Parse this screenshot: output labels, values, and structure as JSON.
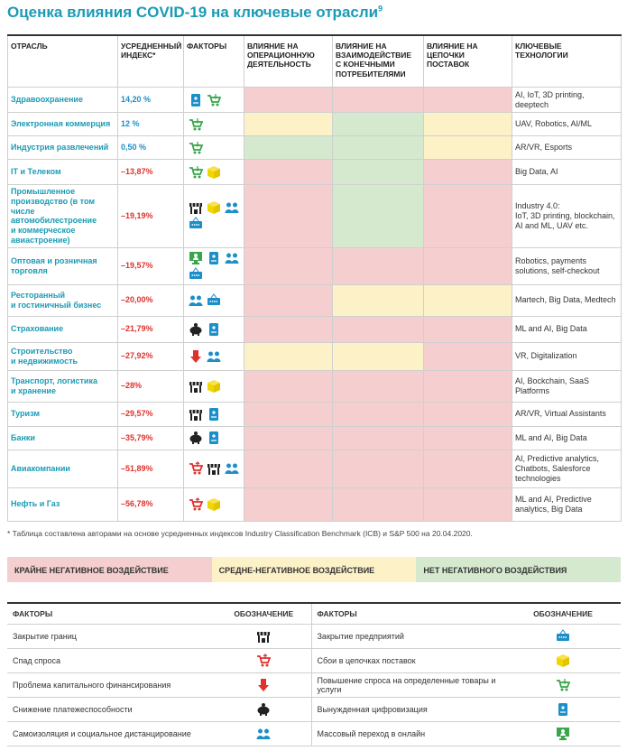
{
  "header": {
    "title": "Оценка влияния COVID-19 на ключевые отрасли",
    "footnote_mark": "9"
  },
  "table": {
    "columns": [
      "ОТРАСЛЬ",
      "УСРЕДНЕННЫЙ\nИНДЕКС*",
      "ФАКТОРЫ",
      "ВЛИЯНИЕ НА\nОПЕРАЦИОННУЮ\nДЕЯТЕЛЬНОСТЬ",
      "ВЛИЯНИЕ НА\nВЗАИМОДЕЙСТВИЕ\nС КОНЕЧНЫМИ\nПОТРЕБИТЕЛЯМИ",
      "ВЛИЯНИЕ НА\nЦЕПОЧКИ\nПОСТАВОК",
      "КЛЮЧЕВЫЕ\nТЕХНОЛОГИИ"
    ],
    "rows": [
      {
        "industry": "Здравоохранение",
        "index": "14,20 %",
        "impacts": [
          "#f5cfcf",
          "#f5cfcf",
          "#f5cfcf"
        ],
        "technologies": "AI, IoT, 3D printing, deeptech"
      },
      {
        "industry": "Электронная коммерция",
        "index": "12 %",
        "impacts": [
          "#fdf1c8",
          "#d5e9cf",
          "#fdf1c8"
        ],
        "technologies": "UAV, Robotics, AI/ML"
      },
      {
        "industry": "Индустрия развлечений",
        "index": "0,50 %",
        "impacts": [
          "#d5e9cf",
          "#d5e9cf",
          "#fdf1c8"
        ],
        "technologies": "AR/VR, Esports"
      },
      {
        "industry": "IT и Телеком",
        "index": "–13,87%",
        "impacts": [
          "#f5cfcf",
          "#d5e9cf",
          "#f5cfcf"
        ],
        "technologies": "Big Data, AI"
      },
      {
        "industry": "Промышленное\nпроизводство (в том числе\nавтомобилестроение\nи коммерческое\nавиастроение)",
        "index": "–19,19%",
        "impacts": [
          "#f5cfcf",
          "#d5e9cf",
          "#f5cfcf"
        ],
        "technologies": "Industry 4.0:\nIoT, 3D printing, blockchain,\nAI and ML, UAV etc."
      },
      {
        "industry": "Оптовая и розничная\nторговля",
        "index": "–19,57%",
        "impacts": [
          "#f5cfcf",
          "#f5cfcf",
          "#f5cfcf"
        ],
        "technologies": "Robotics, payments\nsolutions, self-checkout"
      },
      {
        "industry": "Ресторанный\nи гостиничный бизнес",
        "index": "–20,00%",
        "impacts": [
          "#f5cfcf",
          "#fdf1c8",
          "#fdf1c8"
        ],
        "technologies": "Martech, Big Data, Medtech"
      },
      {
        "industry": "Страхование",
        "index": "–21,79%",
        "impacts": [
          "#f5cfcf",
          "#f5cfcf",
          "#f5cfcf"
        ],
        "technologies": "ML and AI, Big Data"
      },
      {
        "industry": "Строительство\nи недвижимость",
        "index": "–27,92%",
        "impacts": [
          "#fdf1c8",
          "#fdf1c8",
          "#f5cfcf"
        ],
        "technologies": "VR, Digitalization"
      },
      {
        "industry": "Транспорт, логистика\nи хранение",
        "index": "–28%",
        "impacts": [
          "#f5cfcf",
          "#f5cfcf",
          "#f5cfcf"
        ],
        "technologies": "AI, Bockchain, SaaS\nPlatforms"
      },
      {
        "industry": "Туризм",
        "index": "–29,57%",
        "impacts": [
          "#f5cfcf",
          "#f5cfcf",
          "#f5cfcf"
        ],
        "technologies": "AR/VR, Virtual Assistants"
      },
      {
        "industry": "Банки",
        "index": "–35,79%",
        "impacts": [
          "#f5cfcf",
          "#f5cfcf",
          "#f5cfcf"
        ],
        "technologies": "ML and AI, Big Data"
      },
      {
        "industry": "Авиакомпании",
        "index": "–51,89%",
        "impacts": [
          "#f5cfcf",
          "#f5cfcf",
          "#f5cfcf"
        ],
        "technologies": "AI, Predictive analytics,\nChatbots, Salesforce\ntechnologies"
      },
      {
        "industry": "Нефть и Газ",
        "index": "–56,78%",
        "impacts": [
          "#f5cfcf",
          "#f5cfcf",
          "#f5cfcf"
        ],
        "technologies": "ML and AI, Predictive\nanalytics, Big Data"
      }
    ]
  },
  "footnote": "* Таблица составлена авторами на основе усредненных индексов Industry Classification Benchmark (ICB) и S&P 500 на 20.04.2020.",
  "legend": [
    {
      "label": "КРАЙНЕ НЕГАТИВНОЕ ВОЗДЕЙСТВИЕ",
      "color": "#f5cfcf"
    },
    {
      "label": "СРЕДНЕ-НЕГАТИВНОЕ ВОЗДЕЙСТВИЕ",
      "color": "#fdf1c8"
    },
    {
      "label": "НЕТ НЕГАТИВНОГО ВОЗДЕЙСТВИЯ",
      "color": "#d5e9cf"
    }
  ],
  "factors_table": {
    "columns": [
      "ФАКТОРЫ",
      "ОБОЗНАЧЕНИЕ",
      "ФАКТОРЫ",
      "ОБОЗНАЧЕНИЕ"
    ],
    "rows": [
      [
        "Закрытие границ",
        "Закрытие предприятий"
      ],
      [
        "Спад спроса",
        "Сбои в цепочках поставок"
      ],
      [
        "Проблема капитального финансирования",
        "Повышение спроса на определенные товары и услуги"
      ],
      [
        "Снижение платежеспособности",
        "Вынужденная цифровизация"
      ],
      [
        "Самоизоляция и социальное дистанцирование",
        "Массовый переход в онлайн"
      ]
    ]
  }
}
